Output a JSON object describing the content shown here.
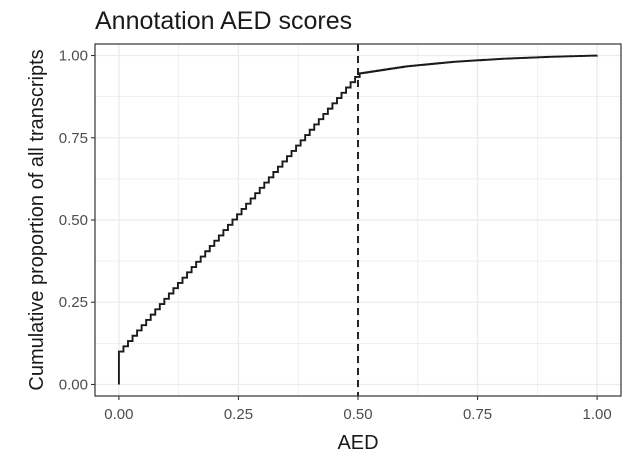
{
  "chart_data": {
    "type": "line",
    "title": "Annotation AED scores",
    "xlabel": "AED",
    "ylabel": "Cumulative proportion of all transcripts",
    "xlim": [
      -0.05,
      1.05
    ],
    "ylim": [
      -0.035,
      1.035
    ],
    "x_ticks": [
      0.0,
      0.25,
      0.5,
      0.75,
      1.0
    ],
    "x_tick_labels": [
      "0.00",
      "0.25",
      "0.50",
      "0.75",
      "1.00"
    ],
    "y_ticks": [
      0.0,
      0.25,
      0.5,
      0.75,
      1.0
    ],
    "y_tick_labels": [
      "0.00",
      "0.25",
      "0.50",
      "0.75",
      "1.00"
    ],
    "grid": true,
    "legend": "none",
    "colors": {
      "line": "#1a1a1a",
      "grid": "#ebebeb",
      "panel_border": "#333333"
    },
    "reference_line": {
      "x": 0.5,
      "style": "dashed"
    },
    "series": [
      {
        "step": true,
        "x": [
          0.0,
          0.0,
          0.5,
          0.6,
          0.7,
          0.8,
          0.9,
          1.0
        ],
        "y": [
          0.0,
          0.1,
          0.945,
          0.967,
          0.981,
          0.99,
          0.996,
          1.0
        ]
      }
    ]
  }
}
